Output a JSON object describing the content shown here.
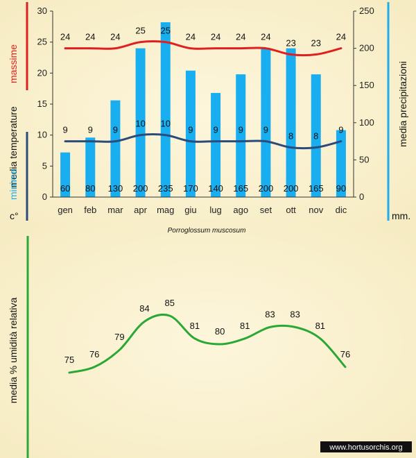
{
  "chart_data": [
    {
      "type": "bar+line",
      "title": "",
      "subtitle": "Porroglossum muscosum",
      "categories": [
        "gen",
        "feb",
        "mar",
        "apr",
        "mag",
        "giu",
        "lug",
        "ago",
        "set",
        "ott",
        "nov",
        "dic"
      ],
      "left_axis": {
        "ylim": [
          0,
          30
        ],
        "ticks": [
          "0",
          "5",
          "10",
          "15",
          "20",
          "25",
          "30"
        ],
        "unit": "c°"
      },
      "right_axis": {
        "ylim": [
          0,
          250
        ],
        "ticks": [
          "0",
          "50",
          "100",
          "150",
          "200",
          "250"
        ],
        "unit": "mm."
      },
      "left_labels": {
        "max": "massime",
        "mid": "media temperature",
        "min": "minime"
      },
      "right_label": "media precipitazioni",
      "series": [
        {
          "name": "massime",
          "kind": "line",
          "axis": "left",
          "color": "#e02020",
          "values": [
            24,
            24,
            24,
            25,
            25,
            24,
            24,
            24,
            24,
            23,
            23,
            24
          ]
        },
        {
          "name": "minime",
          "kind": "line",
          "axis": "left",
          "color": "#2c4a7a",
          "values": [
            9,
            9,
            9,
            10,
            10,
            9,
            9,
            9,
            9,
            8,
            8,
            9
          ]
        },
        {
          "name": "media precipitazioni",
          "kind": "bar",
          "axis": "right",
          "color": "#19aef0",
          "values": [
            60,
            80,
            130,
            200,
            235,
            170,
            140,
            165,
            200,
            200,
            165,
            90
          ]
        }
      ],
      "colors": {
        "max_accent": "#e02020",
        "min_accent": "#2c4a7a",
        "rain_accent": "#19aef0",
        "background": "#faf1d0"
      }
    },
    {
      "type": "line",
      "ylabel": "media % umidità relativa",
      "values": [
        75,
        76,
        79,
        84,
        85,
        81,
        80,
        81,
        83,
        83,
        81,
        76
      ],
      "ylim": [
        70,
        90
      ],
      "colors": {
        "line": "#2aa836",
        "accent": "#2aa836"
      }
    }
  ],
  "watermark": "www.hortusorchis.org"
}
